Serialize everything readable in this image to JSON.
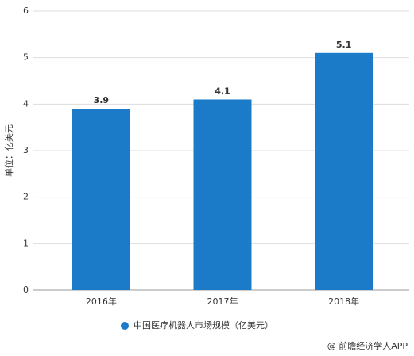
{
  "chart_data": {
    "type": "bar",
    "y_label": "单位：亿美元",
    "categories": [
      "2016年",
      "2017年",
      "2018年"
    ],
    "series": [
      {
        "name": "中国医疗机器人市场规模（亿美元）",
        "color": "#1b7bc9",
        "values": [
          3.9,
          4.1,
          5.1
        ]
      }
    ],
    "ylim": [
      0,
      6
    ],
    "yticks": [
      0,
      1,
      2,
      3,
      4,
      5,
      6
    ],
    "grid": true,
    "legend": "bottom",
    "source": "@ 前瞻经济学人APP"
  }
}
